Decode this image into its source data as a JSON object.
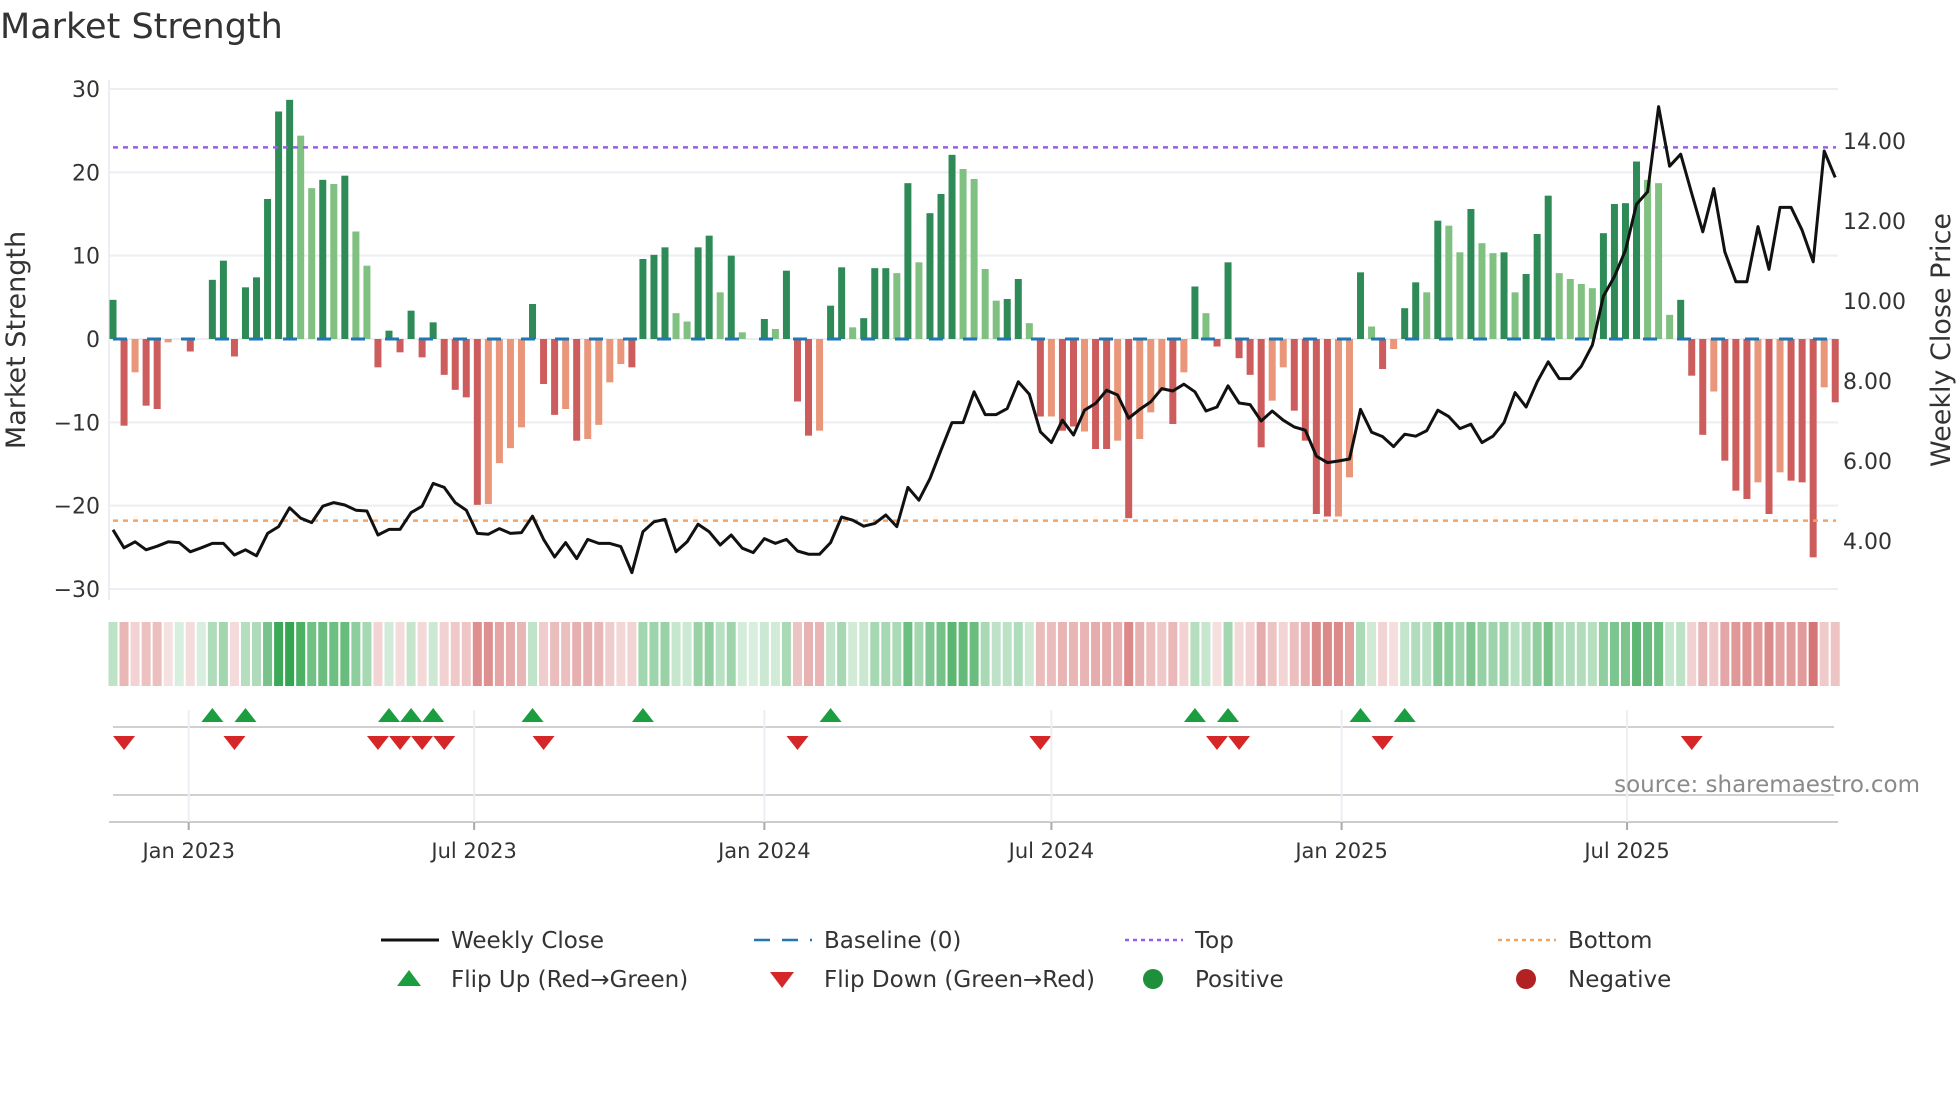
{
  "chart_data": {
    "type": "bar",
    "title": "Market Strength",
    "ylabel": "Market Strength",
    "y2label": "Weekly Close Price",
    "source": "source: sharemaestro.com",
    "ylim": [
      -30,
      30
    ],
    "y2lim": [
      2.0,
      15.5
    ],
    "yticks": [
      "30",
      "20",
      "10",
      "0",
      "−10",
      "−20",
      "−30"
    ],
    "ytick_values": [
      30,
      20,
      10,
      0,
      -10,
      -20,
      -30
    ],
    "y2ticks": [
      "14.00",
      "12.00",
      "10.00",
      "8.00",
      "6.00",
      "4.00"
    ],
    "y2tick_values": [
      14,
      12,
      10,
      8,
      6,
      4
    ],
    "x_start": "2022-11-14",
    "x_step_days": 7,
    "xticks": [
      {
        "label": "Jan 2023",
        "date": "2023-01-01"
      },
      {
        "label": "Jul 2023",
        "date": "2023-07-01"
      },
      {
        "label": "Jan 2024",
        "date": "2024-01-01"
      },
      {
        "label": "Jul 2024",
        "date": "2024-07-01"
      },
      {
        "label": "Jan 2025",
        "date": "2025-01-01"
      },
      {
        "label": "Jul 2025",
        "date": "2025-07-01"
      }
    ],
    "top_line": 23,
    "bottom_line": -21.8,
    "baseline": 0,
    "strength": [
      4.7,
      -10.4,
      -4,
      -8,
      -8.4,
      -0.4,
      0,
      -1.5,
      0,
      7.1,
      9.4,
      -2.1,
      6.2,
      7.4,
      16.8,
      27.3,
      28.7,
      24.4,
      18.1,
      19.1,
      18.6,
      19.6,
      12.9,
      8.8,
      -3.4,
      1.0,
      -1.6,
      3.4,
      -2.2,
      2.0,
      -4.3,
      -6.1,
      -7,
      -19.9,
      -19.8,
      -14.9,
      -13.1,
      -10.6,
      4.2,
      -5.4,
      -9.1,
      -8.4,
      -12.2,
      -12,
      -10.3,
      -5.2,
      -3,
      -3.4,
      9.6,
      10.1,
      11,
      3.1,
      2.1,
      11,
      12.4,
      5.6,
      10,
      0.8,
      0,
      2.4,
      1.2,
      8.2,
      -7.5,
      -11.6,
      -11,
      4,
      8.6,
      1.4,
      2.5,
      8.5,
      8.5,
      7.9,
      18.7,
      9.2,
      15.1,
      17.4,
      22.1,
      20.4,
      19.2,
      8.4,
      4.6,
      4.8,
      7.2,
      1.9,
      -9.3,
      -9.3,
      -11,
      -10.5,
      -11.1,
      -13.2,
      -13.2,
      -12.2,
      -21.5,
      -12,
      -8.8,
      -6.2,
      -10.2,
      -4,
      6.3,
      3.1,
      -0.9,
      9.2,
      -2.3,
      -4.3,
      -13,
      -7.4,
      -3.4,
      -8.6,
      -12.2,
      -21,
      -21.3,
      -21.3,
      -16.6,
      8,
      1.5,
      -3.6,
      -1.2,
      3.7,
      6.8,
      5.6,
      14.2,
      13.6,
      10.4,
      15.6,
      11.5,
      10.3,
      10.4,
      5.6,
      7.8,
      12.6,
      17.2,
      7.9,
      7.2,
      6.6,
      6.1,
      12.7,
      16.2,
      16.3,
      21.3,
      19.1,
      18.7,
      2.9,
      4.7,
      -4.4,
      -11.5,
      -6.3,
      -14.6,
      -18.2,
      -19.2,
      -17.2,
      -21,
      -16,
      -17,
      -17.2,
      -26.2,
      -5.8,
      -7.6
    ],
    "strong": [
      1,
      1,
      0,
      1,
      1,
      0,
      1,
      1,
      1,
      1,
      1,
      1,
      1,
      1,
      1,
      1,
      1,
      0,
      0,
      1,
      0,
      1,
      0,
      0,
      1,
      1,
      1,
      1,
      1,
      1,
      1,
      1,
      1,
      1,
      0,
      0,
      0,
      0,
      1,
      1,
      1,
      0,
      1,
      0,
      0,
      0,
      0,
      1,
      1,
      1,
      1,
      0,
      0,
      1,
      1,
      0,
      1,
      0,
      1,
      1,
      0,
      1,
      1,
      1,
      0,
      1,
      1,
      0,
      1,
      1,
      1,
      0,
      1,
      0,
      1,
      1,
      1,
      0,
      0,
      0,
      0,
      1,
      1,
      0,
      1,
      0,
      1,
      1,
      0,
      1,
      1,
      0,
      1,
      0,
      0,
      0,
      1,
      0,
      1,
      0,
      1,
      1,
      1,
      1,
      1,
      0,
      0,
      1,
      1,
      1,
      1,
      0,
      0,
      1,
      0,
      1,
      0,
      1,
      1,
      0,
      1,
      0,
      0,
      1,
      0,
      0,
      1,
      0,
      1,
      1,
      1,
      0,
      0,
      0,
      0,
      1,
      1,
      1,
      1,
      0,
      0,
      0,
      1,
      1,
      1,
      0,
      1,
      1,
      1,
      0,
      1,
      0,
      1,
      1,
      1,
      0,
      1
    ],
    "weekly_close": [
      4.28,
      3.83,
      3.98,
      3.78,
      3.87,
      3.98,
      3.96,
      3.73,
      3.83,
      3.94,
      3.94,
      3.65,
      3.78,
      3.63,
      4.19,
      4.36,
      4.83,
      4.57,
      4.46,
      4.87,
      4.96,
      4.9,
      4.77,
      4.75,
      4.15,
      4.29,
      4.29,
      4.71,
      4.87,
      5.44,
      5.34,
      4.96,
      4.77,
      4.19,
      4.17,
      4.31,
      4.19,
      4.21,
      4.62,
      4.04,
      3.6,
      3.96,
      3.56,
      4.04,
      3.94,
      3.94,
      3.86,
      3.21,
      4.23,
      4.48,
      4.54,
      3.73,
      3.98,
      4.42,
      4.23,
      3.9,
      4.15,
      3.82,
      3.71,
      4.06,
      3.94,
      4.04,
      3.75,
      3.67,
      3.67,
      3.96,
      4.6,
      4.52,
      4.37,
      4.44,
      4.65,
      4.36,
      5.34,
      5.02,
      5.56,
      6.27,
      6.96,
      6.96,
      7.73,
      7.16,
      7.16,
      7.31,
      7.98,
      7.67,
      6.73,
      6.46,
      7.02,
      6.65,
      7.27,
      7.44,
      7.77,
      7.65,
      7.07,
      7.29,
      7.48,
      7.81,
      7.75,
      7.92,
      7.73,
      7.25,
      7.35,
      7.88,
      7.45,
      7.41,
      7.0,
      7.25,
      7.02,
      6.85,
      6.77,
      6.12,
      5.96,
      6.0,
      6.05,
      7.29,
      6.72,
      6.61,
      6.36,
      6.67,
      6.62,
      6.76,
      7.27,
      7.11,
      6.81,
      6.92,
      6.46,
      6.62,
      6.96,
      7.71,
      7.35,
      7.98,
      8.48,
      8.06,
      8.06,
      8.37,
      8.9,
      10.12,
      10.61,
      11.27,
      12.42,
      12.73,
      14.86,
      13.37,
      13.67,
      12.69,
      11.73,
      12.81,
      11.23,
      10.48,
      10.48,
      11.86,
      10.79,
      12.34,
      12.34,
      11.77,
      10.98,
      13.75,
      13.09
    ],
    "flip_up_weeks": [
      10,
      13,
      26,
      28,
      30,
      39,
      49,
      66,
      99,
      102,
      114,
      118
    ],
    "flip_down_weeks": [
      2,
      12,
      25,
      27,
      29,
      31,
      40,
      63,
      85,
      101,
      103,
      116,
      144
    ],
    "legend": [
      {
        "label": "Weekly Close",
        "kind": "line"
      },
      {
        "label": "Baseline (0)",
        "kind": "dash"
      },
      {
        "label": "Top",
        "kind": "dot-purple"
      },
      {
        "label": "Bottom",
        "kind": "dot-orange"
      },
      {
        "label": "Flip Up (Red→Green)",
        "kind": "tri-up"
      },
      {
        "label": "Flip Down (Green→Red)",
        "kind": "tri-down"
      },
      {
        "label": "Positive",
        "kind": "circle-pos"
      },
      {
        "label": "Negative",
        "kind": "circle-neg"
      }
    ],
    "legend_placement": "bottom",
    "grid": true
  },
  "colors": {
    "pos_strong": "#2e8b57",
    "pos_weak": "#80c080",
    "neg_strong": "#cd5c5c",
    "neg_weak": "#e9967a",
    "close": "#111111",
    "baseline": "#1f77b4",
    "top": "#9b5de5",
    "bottom": "#f4a261",
    "flip_up": "#1a9e3f",
    "flip_down": "#d62728",
    "positive": "#1e8f3a",
    "negative": "#b22222"
  }
}
